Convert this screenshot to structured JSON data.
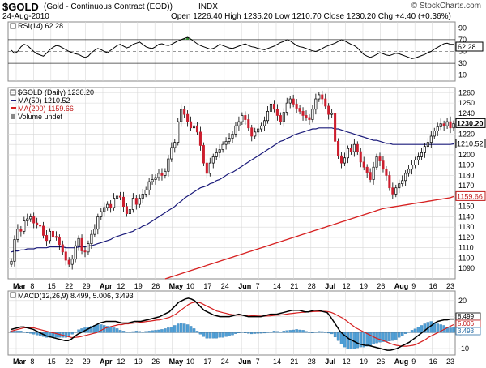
{
  "header": {
    "symbol": "$GOLD",
    "description": "(Gold - Continuous Contract (EOD))",
    "exchange": "INDX",
    "watermark": "© StockCharts.com",
    "date": "24-Aug-2010",
    "quote": "Open 1226.40  High 1235.20  Low 1210.70  Close 1230.20  Chg +4.40 (+0.36%)"
  },
  "colors": {
    "up_candle": "#ffffff",
    "down_candle": "#cc1e2e",
    "ma50": "#1a1a7a",
    "ma200": "#d62020",
    "macd": "#000000",
    "signal": "#d62020",
    "histogram": "#4f9fd6",
    "grid": "#d8d8d8",
    "rsi_line": "#000000",
    "rsi_fill": "#2f8f2f"
  },
  "chart_data": [
    {
      "type": "line",
      "panel": "rsi",
      "legend": "RSI(14) 62.28",
      "last_value_label": "62.28",
      "yticks": [
        "10",
        "30",
        "50",
        "70",
        "90"
      ],
      "ylim": [
        0,
        100
      ],
      "reference_lines": [
        70,
        50,
        30
      ],
      "series": [
        {
          "values": [
            52,
            47,
            50,
            58,
            62,
            60,
            55,
            50,
            46,
            44,
            42,
            47,
            53,
            57,
            60,
            59,
            56,
            53,
            50,
            48,
            46,
            45,
            42,
            40,
            42,
            48,
            52,
            55,
            53,
            50,
            48,
            52,
            56,
            60,
            62,
            59,
            56,
            58,
            62,
            64,
            66,
            62,
            58,
            56,
            55,
            58,
            62,
            63,
            61,
            60,
            62,
            65,
            68,
            70,
            72,
            74,
            71,
            67,
            63,
            60,
            58,
            56,
            54,
            55,
            58,
            62,
            60,
            58,
            56,
            55,
            57,
            59,
            61,
            63,
            60,
            58,
            57,
            55,
            54,
            53,
            55,
            57,
            59,
            62,
            65,
            67,
            70,
            68,
            64,
            60,
            58,
            57,
            55,
            53,
            51,
            50,
            52,
            55,
            58,
            60,
            62,
            64,
            67,
            70,
            68,
            65,
            62,
            60,
            56,
            50,
            45,
            42,
            40,
            42,
            45,
            48,
            46,
            44,
            43,
            45,
            47,
            46,
            44,
            42,
            40,
            38,
            39,
            41,
            43,
            45,
            48,
            50,
            54,
            57,
            60,
            63,
            64,
            62,
            62
          ]
        }
      ]
    },
    {
      "type": "candlestick",
      "panel": "price",
      "legend": [
        "$GOLD (Daily) 1230.20",
        "MA(50) 1210.52",
        "MA(200) 1159.66",
        "Volume undef"
      ],
      "x_labels": [
        "Mar",
        "8",
        "15",
        "22",
        "29",
        "Apr",
        "12",
        "19",
        "26",
        "May",
        "10",
        "17",
        "24",
        "Jun",
        "7",
        "14",
        "21",
        "28",
        "Jul",
        "12",
        "19",
        "26",
        "Aug",
        "9",
        "16",
        "23"
      ],
      "yticks": [
        1090,
        1100,
        1110,
        1120,
        1130,
        1140,
        1150,
        1160,
        1170,
        1180,
        1190,
        1200,
        1210,
        1220,
        1230,
        1240,
        1250,
        1260
      ],
      "ylim": [
        1080,
        1265
      ],
      "last_value_labels": [
        {
          "label": "1230.20",
          "value": 1230.2
        },
        {
          "label": "1210.52",
          "value": 1210.52
        },
        {
          "label": "1159.66",
          "value": 1159.66
        }
      ],
      "close": [
        1097,
        1118,
        1128,
        1126,
        1136,
        1138,
        1140,
        1134,
        1132,
        1131,
        1122,
        1117,
        1126,
        1121,
        1120,
        1113,
        1106,
        1098,
        1094,
        1099,
        1112,
        1119,
        1107,
        1106,
        1114,
        1123,
        1128,
        1140,
        1145,
        1149,
        1152,
        1149,
        1158,
        1160,
        1159,
        1150,
        1143,
        1147,
        1158,
        1152,
        1158,
        1162,
        1166,
        1174,
        1176,
        1178,
        1182,
        1180,
        1184,
        1196,
        1207,
        1212,
        1232,
        1244,
        1239,
        1232,
        1226,
        1228,
        1222,
        1209,
        1192,
        1182,
        1192,
        1198,
        1202,
        1205,
        1210,
        1213,
        1216,
        1220,
        1228,
        1232,
        1238,
        1234,
        1226,
        1218,
        1222,
        1225,
        1228,
        1233,
        1242,
        1249,
        1244,
        1238,
        1232,
        1241,
        1250,
        1254,
        1249,
        1245,
        1242,
        1238,
        1236,
        1234,
        1244,
        1254,
        1258,
        1254,
        1247,
        1239,
        1240,
        1213,
        1199,
        1192,
        1197,
        1206,
        1203,
        1210,
        1203,
        1193,
        1188,
        1183,
        1176,
        1188,
        1198,
        1194,
        1186,
        1180,
        1168,
        1162,
        1168,
        1172,
        1175,
        1182,
        1186,
        1190,
        1195,
        1198,
        1202,
        1208,
        1212,
        1218,
        1223,
        1227,
        1230,
        1228,
        1232,
        1226,
        1230.2
      ],
      "ma50": [
        1106,
        1107,
        1107,
        1108,
        1108,
        1109,
        1109,
        1109,
        1110,
        1110,
        1110,
        1110,
        1111,
        1111,
        1111,
        1111,
        1111,
        1110,
        1110,
        1110,
        1110,
        1111,
        1111,
        1111,
        1112,
        1112,
        1113,
        1114,
        1115,
        1116,
        1117,
        1118,
        1120,
        1121,
        1122,
        1123,
        1124,
        1125,
        1126,
        1128,
        1129,
        1131,
        1132,
        1134,
        1136,
        1138,
        1140,
        1142,
        1144,
        1146,
        1148,
        1150,
        1153,
        1155,
        1158,
        1160,
        1162,
        1164,
        1166,
        1168,
        1169,
        1170,
        1172,
        1173,
        1175,
        1176,
        1178,
        1180,
        1182,
        1183,
        1185,
        1187,
        1189,
        1191,
        1193,
        1195,
        1197,
        1199,
        1201,
        1203,
        1205,
        1207,
        1209,
        1211,
        1213,
        1214,
        1216,
        1217,
        1219,
        1220,
        1221,
        1222,
        1223,
        1224,
        1225,
        1225,
        1226,
        1226,
        1226,
        1226,
        1226,
        1225,
        1225,
        1224,
        1223,
        1222,
        1221,
        1220,
        1219,
        1218,
        1217,
        1216,
        1215,
        1214,
        1214,
        1213,
        1212,
        1211,
        1211,
        1210,
        1210,
        1210,
        1210,
        1210,
        1210,
        1210,
        1210,
        1210,
        1210,
        1210,
        1210,
        1210,
        1210,
        1210,
        1210,
        1210,
        1210,
        1210,
        1210.5
      ],
      "ma200": [
        null,
        null,
        null,
        null,
        null,
        null,
        null,
        null,
        null,
        null,
        null,
        null,
        null,
        null,
        null,
        null,
        null,
        null,
        null,
        null,
        null,
        null,
        null,
        null,
        null,
        null,
        null,
        null,
        null,
        null,
        null,
        null,
        null,
        null,
        null,
        null,
        null,
        null,
        null,
        null,
        null,
        null,
        null,
        null,
        null,
        null,
        null,
        null,
        1080,
        1081,
        1082,
        1083,
        1084,
        1085,
        1086,
        1087,
        1088,
        1089,
        1090,
        1091,
        1092,
        1093,
        1094,
        1095,
        1096,
        1097,
        1098,
        1099,
        1100,
        1101,
        1102,
        1103,
        1104,
        1105,
        1106,
        1107,
        1108,
        1109,
        1110,
        1111,
        1112,
        1113,
        1114,
        1115,
        1116,
        1117,
        1118,
        1119,
        1120,
        1121,
        1122,
        1123,
        1124,
        1125,
        1126,
        1127,
        1128,
        1129,
        1130,
        1131,
        1132,
        1133,
        1134,
        1135,
        1136,
        1137,
        1138,
        1139,
        1140,
        1141,
        1142,
        1143,
        1144,
        1145,
        1146,
        1147,
        1148,
        1148.5,
        1149,
        1149.5,
        1150,
        1150.5,
        1151,
        1151.5,
        1152,
        1152.5,
        1153,
        1153.5,
        1154,
        1154.5,
        1155,
        1155.5,
        1156,
        1156.5,
        1157,
        1157.5,
        1158,
        1158.5,
        1159.66
      ]
    },
    {
      "type": "line",
      "panel": "macd",
      "legend": "MACD(12,26,9) 8.499, 5.006, 3.493",
      "last_value_labels": [
        "8.499",
        "5.006",
        "3.493"
      ],
      "yticks": [
        -10,
        0,
        10,
        20
      ],
      "ylim": [
        -14,
        26
      ],
      "series": [
        {
          "name": "MACD(12,26,9)",
          "values": [
            2,
            2.5,
            3,
            3.5,
            3.5,
            3,
            2.5,
            2,
            1,
            0,
            -1,
            -2,
            -2.5,
            -3,
            -3.5,
            -4,
            -4.5,
            -5,
            -5,
            -4,
            -2.5,
            -1,
            0,
            1,
            2,
            3,
            4,
            5,
            6,
            6.5,
            7,
            7,
            7,
            7,
            6.5,
            6,
            6,
            6,
            6.5,
            7,
            7,
            7,
            7.5,
            8,
            8.5,
            9,
            9.5,
            10,
            11,
            12,
            13,
            15,
            17,
            19,
            20,
            21,
            21.5,
            21,
            20,
            18,
            16,
            14,
            13,
            12,
            11,
            10.5,
            10,
            10,
            10,
            10,
            10.5,
            11,
            11.5,
            11,
            10.5,
            10,
            10,
            10,
            10,
            10,
            10.5,
            11,
            11.5,
            11.5,
            11.5,
            12,
            12.5,
            13,
            13.5,
            14,
            14,
            14,
            13.5,
            13,
            13,
            13.5,
            14,
            14,
            13.5,
            13,
            12.5,
            10,
            7,
            4,
            1,
            -1,
            -2.5,
            -4,
            -5,
            -6,
            -7,
            -7.5,
            -8,
            -8,
            -8.5,
            -9,
            -9.5,
            -10,
            -10.5,
            -11,
            -11,
            -10.5,
            -10,
            -9,
            -8,
            -7,
            -6,
            -4.5,
            -3,
            -1.5,
            0,
            1.5,
            3,
            4.5,
            6,
            7,
            7.5,
            8,
            8,
            8.5,
            8.499
          ]
        },
        {
          "name": "signal",
          "values": [
            1,
            1.5,
            2,
            2.5,
            3,
            3,
            3,
            3,
            2.5,
            2,
            1.5,
            1,
            0.5,
            0,
            -0.5,
            -1,
            -1.5,
            -2,
            -2.5,
            -3,
            -3,
            -2.8,
            -2.5,
            -2,
            -1.5,
            -1,
            -0.5,
            0,
            1,
            2,
            3,
            3.5,
            4,
            4.5,
            5,
            5,
            5.5,
            5.5,
            5.8,
            6,
            6.2,
            6.5,
            6.7,
            7,
            7.2,
            7.5,
            7.8,
            8,
            8.5,
            9,
            9.5,
            10.5,
            11.5,
            13,
            14.5,
            16,
            17.5,
            18.5,
            19,
            19,
            18.5,
            17.5,
            16.5,
            15.5,
            14.5,
            13.5,
            13,
            12.5,
            12,
            11.5,
            11.2,
            11,
            11,
            11,
            11,
            10.8,
            10.6,
            10.5,
            10.4,
            10.3,
            10.3,
            10.4,
            10.5,
            10.7,
            10.9,
            11,
            11.2,
            11.5,
            11.8,
            12,
            12.3,
            12.5,
            12.7,
            12.8,
            13,
            13.1,
            13.2,
            13.3,
            13.3,
            13.3,
            13.2,
            12.8,
            12,
            11,
            10,
            9,
            7.5,
            6,
            4.5,
            3,
            2,
            1,
            0,
            -1,
            -2,
            -3,
            -3.8,
            -4.5,
            -5.2,
            -6,
            -6.8,
            -7.5,
            -8,
            -8.3,
            -8.5,
            -8.5,
            -8.3,
            -8,
            -7.5,
            -6.5,
            -5.5,
            -4.5,
            -3,
            -2,
            -1,
            0,
            1,
            2,
            3,
            4,
            5.006
          ]
        },
        {
          "name": "histogram",
          "values": [
            1,
            1,
            1,
            1,
            0.5,
            0,
            -0.5,
            -1,
            -1.5,
            -2,
            -2.5,
            -3,
            -3,
            -3,
            -3,
            -3,
            -3,
            -3,
            -2.5,
            -1,
            0.5,
            1.8,
            2.5,
            3,
            3.5,
            4,
            4.5,
            5,
            5,
            4.5,
            4,
            3.5,
            3,
            2.5,
            1.5,
            1,
            0.5,
            0.5,
            0.7,
            1,
            0.8,
            0.5,
            0.8,
            1,
            1.3,
            1.5,
            1.7,
            2,
            2.5,
            3,
            3.5,
            4.5,
            5.5,
            6,
            5.5,
            5,
            4,
            2.5,
            1,
            -1,
            -2.5,
            -3.5,
            -3.5,
            -3.5,
            -3.5,
            -3,
            -3,
            -2.5,
            -2,
            -1.5,
            -0.7,
            0,
            0.5,
            0,
            -0.5,
            -0.8,
            -0.6,
            -0.5,
            -0.4,
            -0.3,
            0.2,
            0.6,
            1,
            0.8,
            0.6,
            1,
            1.3,
            1.5,
            1.7,
            2,
            1.7,
            1.5,
            0.8,
            0.2,
            0,
            0.4,
            0.8,
            0.7,
            0.2,
            -0.3,
            -0.8,
            -2.8,
            -5,
            -7,
            -9,
            -10,
            -10,
            -10,
            -9.5,
            -9,
            -9,
            -8.5,
            -8,
            -7,
            -6.5,
            -6,
            -5.7,
            -5.5,
            -5.3,
            -5,
            -4.2,
            -3,
            -2,
            -0.7,
            0.5,
            1.5,
            2.3,
            3.5,
            4.5,
            5.5,
            6.5,
            7,
            6,
            5.5,
            5,
            4.5,
            3.5,
            3,
            3.493
          ]
        }
      ]
    }
  ]
}
